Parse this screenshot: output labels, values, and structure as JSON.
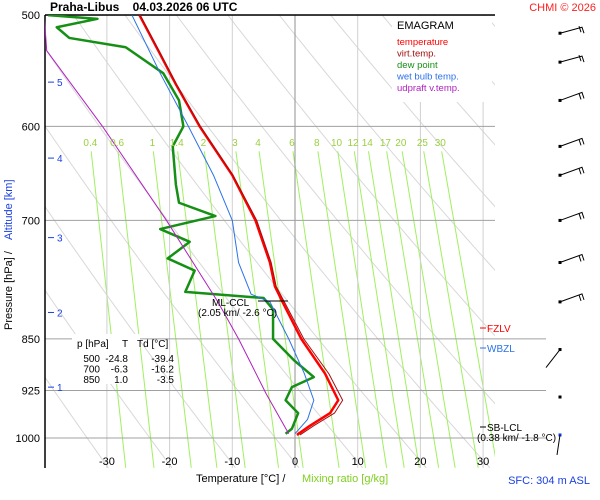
{
  "chart_data": {
    "type": "line",
    "title": "Praha-Libus    04.03.2026 06 UTC",
    "copyright": "CHMI © 2026",
    "diagram_name": "EMAGRAM",
    "xlabel": "Temperature [°C]  /",
    "xlabel2": "Mixing ratio [g/kg]",
    "ylabel": "Pressure [hPa]  /",
    "ylabel2": "Altitude [km]",
    "xlim": [
      -40,
      32
    ],
    "ylim": [
      1050,
      500
    ],
    "x_ticks": [
      -30,
      -20,
      -10,
      0,
      10,
      20,
      30
    ],
    "pressure_ticks": [
      500,
      600,
      700,
      850,
      925,
      1000
    ],
    "altitude_ticks": [
      {
        "km": "5",
        "p": 558
      },
      {
        "km": "4",
        "p": 632
      },
      {
        "km": "3",
        "p": 720
      },
      {
        "km": "2",
        "p": 814
      },
      {
        "km": "1",
        "p": 920
      }
    ],
    "mixing_ratio_labels": [
      "0.4",
      "0.6",
      "1",
      "1.4",
      "2",
      "3",
      "4",
      "6",
      "8",
      "10",
      "12",
      "14",
      "17",
      "20",
      "25",
      "30"
    ],
    "legend": [
      {
        "name": "temperature",
        "color": "#ff0000"
      },
      {
        "name": "virt.temp.",
        "color": "#a01010"
      },
      {
        "name": "dew point",
        "color": "#159015"
      },
      {
        "name": "wet bulb temp.",
        "color": "#2a72e8"
      },
      {
        "name": "udpraft v.temp.",
        "color": "#b020c0"
      }
    ],
    "series": [
      {
        "name": "temperature",
        "p": [
          500,
          530,
          560,
          600,
          650,
          700,
          750,
          780,
          800,
          850,
          900,
          940,
          960,
          980,
          995
        ],
        "T": [
          -24.8,
          -21.8,
          -19,
          -15.2,
          -10,
          -6.3,
          -4,
          -3.2,
          -2,
          1.0,
          4.8,
          6.9,
          5.6,
          2.4,
          0.3
        ]
      },
      {
        "name": "virt.temp.",
        "p": [
          500,
          530,
          560,
          600,
          650,
          700,
          750,
          780,
          800,
          850,
          900,
          940,
          960,
          980,
          995
        ],
        "T": [
          -24.7,
          -21.7,
          -18.9,
          -15.1,
          -9.9,
          -6.1,
          -3.8,
          -3.0,
          -1.7,
          1.4,
          5.4,
          7.6,
          6.3,
          3.0,
          0.8
        ]
      },
      {
        "name": "dew point",
        "p": [
          500,
          503,
          510,
          519,
          527,
          550,
          575,
          600,
          620,
          660,
          680,
          695,
          710,
          725,
          745,
          760,
          787,
          795,
          810,
          850,
          880,
          905,
          920,
          940,
          960,
          985,
          993
        ],
        "T": [
          -39.4,
          -31.5,
          -38,
          -36,
          -27,
          -21,
          -18.5,
          -17.8,
          -19.5,
          -19,
          -18.5,
          -12.7,
          -21.5,
          -16.8,
          -20.3,
          -16,
          -17.5,
          -5,
          -3.5,
          -3.5,
          -0.2,
          3,
          -0.5,
          -1.5,
          0.5,
          -0.5,
          -1.5
        ]
      },
      {
        "name": "wet bulb temp.",
        "p": [
          500,
          550,
          600,
          650,
          700,
          750,
          790,
          800,
          850,
          900,
          940,
          970,
          993
        ],
        "T": [
          -26,
          -21.5,
          -17,
          -13,
          -10,
          -9,
          -7,
          -4,
          -1,
          1.5,
          3,
          2,
          0
        ]
      },
      {
        "name": "udpraft v.temp.",
        "p": [
          993,
          930,
          850,
          800,
          700,
          600,
          530,
          500
        ],
        "T": [
          -1,
          -4.6,
          -9,
          -12.3,
          -20.5,
          -30.7,
          -39.6,
          -40
        ]
      }
    ],
    "sounding_table": {
      "headers": [
        "p [hPa]",
        "T",
        "Td [°C]"
      ],
      "rows": [
        [
          "500",
          "-24.8",
          "-39.4"
        ],
        [
          "700",
          "-6.3",
          "-16.2"
        ],
        [
          "850",
          "1.0",
          "-3.5"
        ]
      ]
    },
    "annotations": {
      "ml_ccl": [
        "ML-CCL",
        "(2.05 km/ -2.6 °C)"
      ],
      "fzlv": "FZLV",
      "wbzl": "WBZL",
      "sb_lcl": [
        "SB-LCL",
        "(0.38 km/ -1.8 °C)"
      ],
      "sfc": "SFC: 304 m ASL"
    },
    "wind_levels_hpa": [
      515,
      540,
      575,
      620,
      650,
      700,
      750,
      800,
      865,
      935,
      995
    ]
  }
}
